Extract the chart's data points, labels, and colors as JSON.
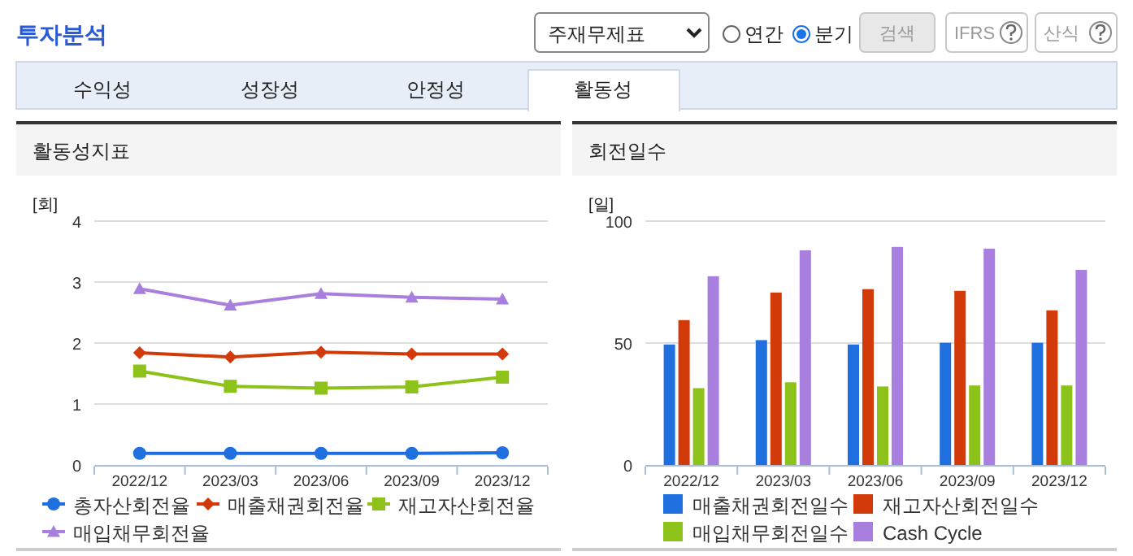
{
  "chart_data": [
    {
      "type": "other",
      "title": "투자분석",
      "annotations": [
        "주재무제표",
        "연간",
        "분기",
        "검색",
        "IFRS",
        "산식",
        "수익성",
        "성장성",
        "안정성",
        "활동성"
      ]
    },
    {
      "type": "line",
      "title": "활동성지표",
      "ylabel": "[회]",
      "categories": [
        "2022/12",
        "2023/03",
        "2023/06",
        "2023/09",
        "2023/12"
      ],
      "ylim": [
        0,
        4
      ],
      "yticks": [
        0,
        1,
        2,
        3,
        4
      ],
      "grid": "y",
      "legend": "bottom",
      "series": [
        {
          "name": "총자산회전율",
          "color": "#1f6fde",
          "marker": "circle",
          "values": [
            0.19,
            0.19,
            0.19,
            0.19,
            0.2
          ]
        },
        {
          "name": "매출채권회전율",
          "color": "#d33a0a",
          "marker": "diamond",
          "values": [
            1.84,
            1.77,
            1.85,
            1.82,
            1.82
          ]
        },
        {
          "name": "재고자산회전율",
          "color": "#8cc21a",
          "marker": "square",
          "values": [
            1.54,
            1.29,
            1.26,
            1.28,
            1.44
          ]
        },
        {
          "name": "매입채무회전율",
          "color": "#a87fdf",
          "marker": "triangle",
          "values": [
            2.89,
            2.62,
            2.81,
            2.75,
            2.72
          ]
        }
      ]
    },
    {
      "type": "bar",
      "title": "회전일수",
      "ylabel": "[일]",
      "categories": [
        "2022/12",
        "2023/03",
        "2023/06",
        "2023/09",
        "2023/12"
      ],
      "ylim": [
        0,
        100
      ],
      "yticks": [
        0,
        50,
        100
      ],
      "grid": "y",
      "legend": "bottom",
      "series": [
        {
          "name": "매출채권회전일수",
          "color": "#1f6fde",
          "values": [
            49.4,
            51.2,
            49.4,
            50.1,
            50.1
          ]
        },
        {
          "name": "재고자산회전일수",
          "color": "#d33a0a",
          "values": [
            59.4,
            70.7,
            72.1,
            71.4,
            63.4
          ]
        },
        {
          "name": "매입채무회전일수",
          "color": "#8cc21a",
          "values": [
            31.5,
            33.9,
            32.2,
            32.6,
            32.6
          ]
        },
        {
          "name": "Cash Cycle",
          "color": "#a87fdf",
          "values": [
            77.4,
            88.0,
            89.4,
            88.7,
            80.0
          ]
        }
      ]
    }
  ]
}
